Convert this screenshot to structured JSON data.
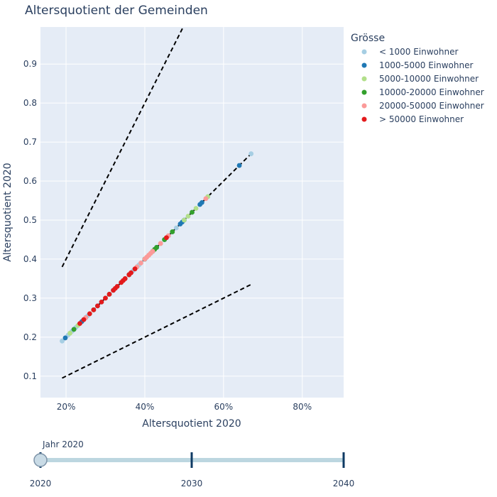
{
  "colors": {
    "plot_bg": "#e5ecf6",
    "grid": "#ffffff",
    "text": "#2a3f5f",
    "slider_track": "#bcd6e0",
    "slider_tick": "#0e3a63"
  },
  "chart_data": {
    "type": "scatter",
    "title": "Altersquotient der Gemeinden",
    "xlabel": "Altersquotient 2020",
    "ylabel": "Altersquotient 2020",
    "xlim": [
      0.135,
      0.905
    ],
    "ylim": [
      0.045,
      0.995
    ],
    "x_ticks": [
      0.2,
      0.4,
      0.6,
      0.8
    ],
    "x_tick_labels": [
      "20%",
      "40%",
      "60%",
      "80%"
    ],
    "y_ticks": [
      0.1,
      0.2,
      0.3,
      0.4,
      0.5,
      0.6,
      0.7,
      0.8,
      0.9
    ],
    "y_tick_labels": [
      "0.1",
      "0.2",
      "0.3",
      "0.4",
      "0.5",
      "0.6",
      "0.7",
      "0.8",
      "0.9"
    ],
    "grid": true,
    "legend_title": "Grösse",
    "legend_position": "right",
    "reference_lines": [
      {
        "x": [
          0.19,
          0.67
        ],
        "y": [
          0.095,
          0.335
        ],
        "style": "dash"
      },
      {
        "x": [
          0.19,
          0.67
        ],
        "y": [
          0.19,
          0.67
        ],
        "style": "dash"
      },
      {
        "x": [
          0.19,
          0.67
        ],
        "y": [
          0.38,
          1.34
        ],
        "style": "dash"
      }
    ],
    "series": [
      {
        "name": "< 1000 Einwohner",
        "color": "#a6cee3",
        "x": [
          0.19,
          0.205,
          0.215,
          0.225,
          0.235,
          0.245,
          0.255,
          0.27,
          0.29,
          0.31,
          0.33,
          0.35,
          0.37,
          0.385,
          0.4,
          0.42,
          0.44,
          0.46,
          0.48,
          0.5,
          0.52,
          0.56,
          0.67
        ],
        "y": [
          0.19,
          0.205,
          0.215,
          0.225,
          0.235,
          0.245,
          0.255,
          0.27,
          0.29,
          0.31,
          0.33,
          0.35,
          0.37,
          0.385,
          0.4,
          0.42,
          0.44,
          0.46,
          0.48,
          0.5,
          0.52,
          0.56,
          0.67
        ]
      },
      {
        "name": "1000-5000 Einwohner",
        "color": "#1f78b4",
        "x": [
          0.198,
          0.22,
          0.24,
          0.25,
          0.28,
          0.32,
          0.36,
          0.4,
          0.43,
          0.45,
          0.47,
          0.49,
          0.495,
          0.5,
          0.54,
          0.545,
          0.64
        ],
        "y": [
          0.198,
          0.22,
          0.24,
          0.25,
          0.28,
          0.32,
          0.36,
          0.4,
          0.43,
          0.45,
          0.47,
          0.49,
          0.495,
          0.5,
          0.54,
          0.545,
          0.64
        ]
      },
      {
        "name": "5000-10000 Einwohner",
        "color": "#b2df8a",
        "x": [
          0.21,
          0.23,
          0.26,
          0.3,
          0.34,
          0.38,
          0.41,
          0.44,
          0.47,
          0.5,
          0.51,
          0.53,
          0.56
        ],
        "y": [
          0.21,
          0.23,
          0.26,
          0.3,
          0.34,
          0.38,
          0.41,
          0.44,
          0.47,
          0.5,
          0.51,
          0.53,
          0.56
        ]
      },
      {
        "name": "10000-20000 Einwohner",
        "color": "#33a02c",
        "x": [
          0.22,
          0.27,
          0.31,
          0.36,
          0.4,
          0.42,
          0.425,
          0.43,
          0.45,
          0.47,
          0.52
        ],
        "y": [
          0.22,
          0.27,
          0.31,
          0.36,
          0.4,
          0.42,
          0.425,
          0.43,
          0.45,
          0.47,
          0.52
        ]
      },
      {
        "name": "20000-50000 Einwohner",
        "color": "#fb9a99",
        "x": [
          0.25,
          0.3,
          0.35,
          0.38,
          0.39,
          0.4,
          0.405,
          0.41,
          0.415,
          0.42,
          0.44,
          0.46,
          0.555
        ],
        "y": [
          0.25,
          0.3,
          0.35,
          0.38,
          0.39,
          0.4,
          0.405,
          0.41,
          0.415,
          0.42,
          0.44,
          0.46,
          0.555
        ]
      },
      {
        "name": "> 50000 Einwohner",
        "color": "#e31a1c",
        "x": [
          0.235,
          0.245,
          0.26,
          0.27,
          0.28,
          0.29,
          0.3,
          0.31,
          0.32,
          0.325,
          0.33,
          0.34,
          0.345,
          0.35,
          0.36,
          0.365,
          0.375,
          0.455
        ],
        "y": [
          0.235,
          0.245,
          0.26,
          0.27,
          0.28,
          0.29,
          0.3,
          0.31,
          0.32,
          0.325,
          0.33,
          0.34,
          0.345,
          0.35,
          0.36,
          0.365,
          0.375,
          0.455
        ]
      }
    ]
  },
  "slider": {
    "current_label": "Jahr 2020",
    "steps": [
      "2020",
      "2030",
      "2040"
    ],
    "active_index": 0
  }
}
